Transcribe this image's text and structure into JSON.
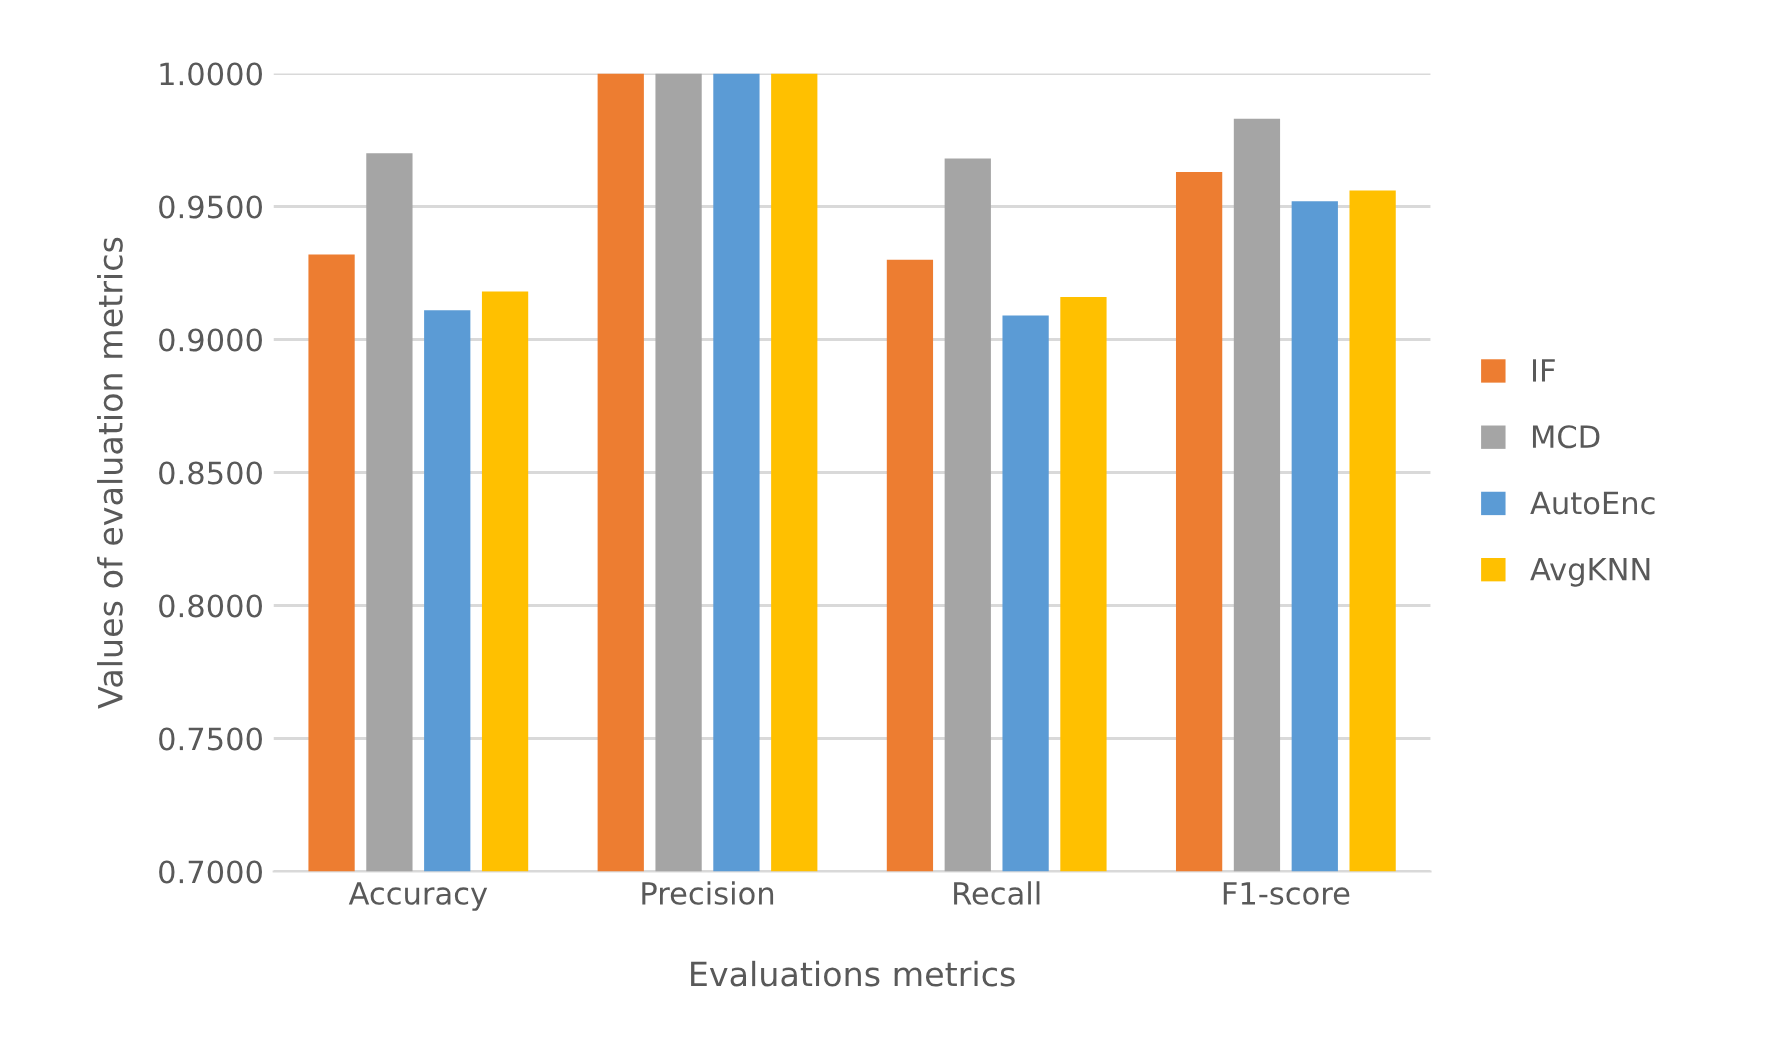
{
  "chart_data": {
    "type": "bar",
    "xlabel": "Evaluations metrics",
    "ylabel": "Values of evaluation metrics",
    "categories": [
      "Accuracy",
      "Precision",
      "Recall",
      "F1-score"
    ],
    "series": [
      {
        "name": "IF",
        "color": "#ed7d31",
        "values": [
          0.932,
          1.0,
          0.93,
          0.963
        ]
      },
      {
        "name": "MCD",
        "color": "#a5a5a5",
        "values": [
          0.97,
          1.0,
          0.968,
          0.983
        ]
      },
      {
        "name": "AutoEnc",
        "color": "#5b9bd5",
        "values": [
          0.911,
          1.0,
          0.909,
          0.952
        ]
      },
      {
        "name": "AvgKNN",
        "color": "#ffc000",
        "values": [
          0.918,
          1.0,
          0.916,
          0.956
        ]
      }
    ],
    "ylim": [
      0.7,
      1.0
    ],
    "yticks": [
      {
        "value": 0.7,
        "label": "0.7000"
      },
      {
        "value": 0.75,
        "label": "0.7500"
      },
      {
        "value": 0.8,
        "label": "0.8000"
      },
      {
        "value": 0.85,
        "label": "0.8500"
      },
      {
        "value": 0.9,
        "label": "0.9000"
      },
      {
        "value": 0.95,
        "label": "0.9500"
      },
      {
        "value": 1.0,
        "label": "1.0000"
      }
    ],
    "grid": "y",
    "legend": "right"
  }
}
